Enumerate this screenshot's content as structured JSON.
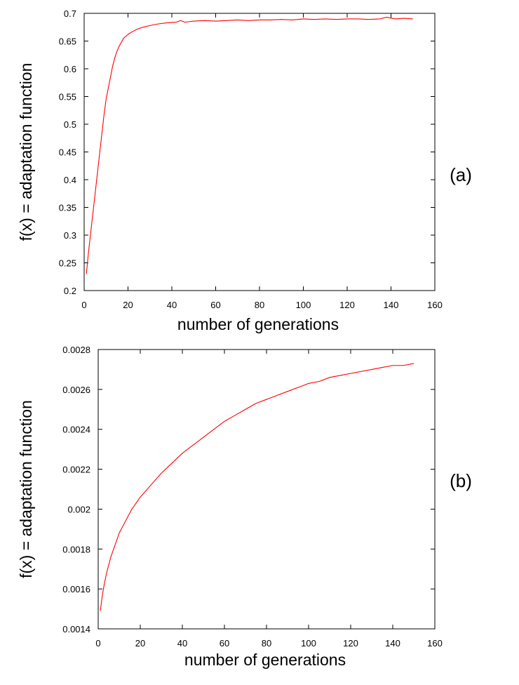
{
  "chart_data": [
    {
      "type": "line",
      "panel_label": "(a)",
      "xlabel": "number of generations",
      "ylabel": "f(x) = adaptation function",
      "xlim": [
        0,
        160
      ],
      "ylim": [
        0.2,
        0.7
      ],
      "xticks": [
        "0",
        "20",
        "40",
        "60",
        "80",
        "100",
        "120",
        "140",
        "160"
      ],
      "yticks": [
        "0.2",
        "0.25",
        "0.3",
        "0.35",
        "0.4",
        "0.45",
        "0.5",
        "0.55",
        "0.6",
        "0.65",
        "0.7"
      ],
      "grid": false,
      "series_color": "#ff0000",
      "series": [
        {
          "name": "",
          "x": [
            1,
            2,
            3,
            4,
            5,
            6,
            7,
            8,
            9,
            10,
            11,
            12,
            13,
            14,
            15,
            16,
            17,
            18,
            20,
            22,
            24,
            26,
            28,
            30,
            34,
            38,
            42,
            44,
            46,
            50,
            55,
            60,
            65,
            70,
            75,
            80,
            85,
            90,
            95,
            100,
            105,
            110,
            115,
            120,
            125,
            130,
            135,
            138,
            142,
            146,
            150
          ],
          "y": [
            0.23,
            0.27,
            0.305,
            0.34,
            0.375,
            0.41,
            0.445,
            0.48,
            0.515,
            0.545,
            0.565,
            0.585,
            0.605,
            0.62,
            0.632,
            0.641,
            0.648,
            0.655,
            0.662,
            0.667,
            0.671,
            0.674,
            0.676,
            0.678,
            0.681,
            0.683,
            0.684,
            0.687,
            0.684,
            0.686,
            0.687,
            0.686,
            0.687,
            0.688,
            0.687,
            0.688,
            0.688,
            0.689,
            0.688,
            0.69,
            0.689,
            0.69,
            0.689,
            0.69,
            0.69,
            0.689,
            0.69,
            0.693,
            0.69,
            0.691,
            0.69
          ]
        }
      ]
    },
    {
      "type": "line",
      "panel_label": "(b)",
      "xlabel": "number of generations",
      "ylabel": "f(x) = adaptation function",
      "xlim": [
        0,
        160
      ],
      "ylim": [
        0.0014,
        0.0028
      ],
      "xticks": [
        "0",
        "20",
        "40",
        "60",
        "80",
        "100",
        "120",
        "140",
        "160"
      ],
      "yticks": [
        "0.0014",
        "0.0016",
        "0.0018",
        "0.002",
        "0.0022",
        "0.0024",
        "0.0026",
        "0.0028"
      ],
      "grid": false,
      "series_color": "#ff0000",
      "series": [
        {
          "name": "",
          "x": [
            1,
            2,
            3,
            4,
            5,
            6,
            8,
            10,
            12,
            14,
            16,
            18,
            20,
            25,
            30,
            35,
            40,
            45,
            50,
            55,
            60,
            65,
            70,
            75,
            80,
            85,
            90,
            95,
            100,
            105,
            110,
            115,
            120,
            125,
            130,
            135,
            140,
            145,
            150
          ],
          "y": [
            0.00149,
            0.00157,
            0.00163,
            0.00168,
            0.00172,
            0.00176,
            0.00182,
            0.00188,
            0.00192,
            0.00196,
            0.002,
            0.00203,
            0.00206,
            0.00212,
            0.00218,
            0.00223,
            0.00228,
            0.00232,
            0.00236,
            0.0024,
            0.00244,
            0.00247,
            0.0025,
            0.00253,
            0.00255,
            0.00257,
            0.00259,
            0.00261,
            0.00263,
            0.00264,
            0.00266,
            0.00267,
            0.00268,
            0.00269,
            0.0027,
            0.00271,
            0.00272,
            0.00272,
            0.00273
          ]
        }
      ]
    }
  ]
}
